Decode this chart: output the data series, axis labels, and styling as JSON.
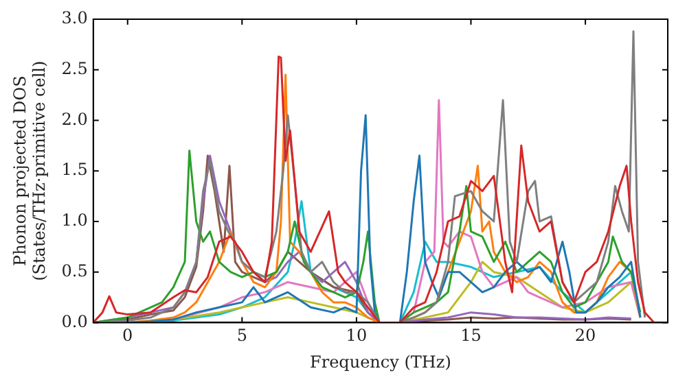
{
  "chart_data": {
    "type": "line",
    "xlabel": "Frequency (THz)",
    "ylabel": "Phonon projected DOS\n(States/THz·primitive cell)",
    "xlim": [
      -1.5,
      23.6
    ],
    "ylim": [
      0,
      3
    ],
    "xticks": [
      0,
      5,
      10,
      15,
      20
    ],
    "yticks": [
      {
        "value": 0,
        "label": "0.0"
      },
      {
        "value": 0.5,
        "label": "0.5"
      },
      {
        "value": 1,
        "label": "1.0"
      },
      {
        "value": 1.5,
        "label": "1.5"
      },
      {
        "value": 2,
        "label": "2.0"
      },
      {
        "value": 2.5,
        "label": "2.5"
      },
      {
        "value": 3,
        "label": "3.0"
      }
    ],
    "grid": false,
    "legend": false,
    "marker": "none",
    "line_style": "solid",
    "series": [
      {
        "color": "#d62728",
        "x": [
          -1.5,
          -1.1,
          -0.8,
          -0.5,
          0,
          1,
          2,
          2.5,
          3,
          3.5,
          4,
          4.5,
          5,
          5.5,
          6,
          6.3,
          6.6,
          6.7,
          6.9,
          7.1,
          7.5,
          8,
          8.5,
          8.8,
          9.2,
          9.5,
          10,
          10.5,
          11,
          11.9,
          12.5,
          13,
          13.5,
          14,
          14.5,
          15,
          15.5,
          16,
          16.5,
          16.8,
          17.2,
          17.5,
          18,
          18.5,
          19,
          19.5,
          20,
          20.5,
          21,
          21.5,
          21.8,
          22,
          22.3,
          22.6,
          23
        ],
        "values": [
          0,
          0.1,
          0.26,
          0.1,
          0.08,
          0.1,
          0.25,
          0.32,
          0.3,
          0.45,
          0.8,
          0.85,
          0.7,
          0.5,
          0.4,
          0.8,
          2.63,
          2.62,
          1.6,
          1.9,
          0.9,
          0.7,
          0.95,
          1.1,
          0.5,
          0.4,
          0.3,
          0.15,
          0,
          0,
          0.15,
          0.2,
          0.5,
          1.0,
          1.05,
          1.4,
          1.3,
          1.45,
          0.6,
          0.3,
          1.75,
          1.2,
          0.9,
          1.0,
          0.4,
          0.2,
          0.5,
          0.6,
          0.9,
          1.35,
          1.55,
          1.0,
          0.4,
          0.1,
          0
        ]
      },
      {
        "color": "#7f7f7f",
        "x": [
          -1.5,
          0,
          1,
          2,
          2.5,
          3,
          3.3,
          3.6,
          4,
          4.4,
          4.7,
          5,
          5.5,
          6,
          6.5,
          6.8,
          7,
          7.3,
          7.6,
          8,
          8.5,
          9,
          9.5,
          10,
          10.5,
          11,
          11.9,
          12.5,
          13,
          13.5,
          14,
          14.3,
          15,
          15.5,
          16,
          16.4,
          16.7,
          17,
          17.5,
          17.8,
          18,
          18.5,
          19,
          19.5,
          20,
          20.5,
          21,
          21.3,
          21.6,
          21.9,
          22.1,
          22.3,
          22.6
        ],
        "values": [
          0,
          0.02,
          0.05,
          0.15,
          0.3,
          0.6,
          1.3,
          1.6,
          1.1,
          0.9,
          0.8,
          0.6,
          0.5,
          0.45,
          0.9,
          1.5,
          2.05,
          1.4,
          0.7,
          0.5,
          0.6,
          0.4,
          0.3,
          0.3,
          0.2,
          0,
          0,
          0.05,
          0.1,
          0.2,
          0.6,
          1.25,
          1.3,
          1.1,
          1.0,
          2.2,
          0.8,
          0.6,
          1.3,
          1.4,
          1.0,
          1.05,
          0.4,
          0.2,
          0.3,
          0.4,
          0.8,
          1.35,
          1.1,
          0.9,
          2.88,
          0.6,
          0.05
        ]
      },
      {
        "color": "#1f77b4",
        "x": [
          -1.5,
          0,
          1,
          2,
          3,
          4,
          5,
          5.5,
          6,
          7,
          8,
          9,
          9.5,
          10,
          10.2,
          10.4,
          10.6,
          10.8,
          11,
          11.9,
          12.2,
          12.5,
          12.75,
          13,
          13.3,
          13.6,
          14,
          14.5,
          15,
          15.5,
          16,
          16.5,
          17,
          17.5,
          18,
          18.5,
          19,
          19.3,
          19.6,
          20,
          20.5,
          21,
          21.5,
          22,
          22.4
        ],
        "values": [
          0,
          0,
          0.01,
          0.03,
          0.1,
          0.15,
          0.2,
          0.35,
          0.2,
          0.3,
          0.15,
          0.1,
          0.15,
          0.1,
          1.5,
          2.05,
          0.6,
          0.1,
          0,
          0,
          0.5,
          1.2,
          1.65,
          0.6,
          0.4,
          0.25,
          0.5,
          0.5,
          0.4,
          0.3,
          0.35,
          0.5,
          0.6,
          0.5,
          0.55,
          0.4,
          0.8,
          0.5,
          0.1,
          0.1,
          0.2,
          0.35,
          0.45,
          0.6,
          0.05
        ]
      },
      {
        "color": "#2ca02c",
        "x": [
          -1.5,
          0,
          1,
          1.5,
          2,
          2.5,
          2.7,
          3,
          3.3,
          3.6,
          4,
          4.5,
          5,
          5.5,
          6,
          6.5,
          7,
          7.3,
          7.7,
          8,
          8.5,
          9,
          9.5,
          10,
          10.3,
          10.5,
          10.8,
          11,
          11.9,
          12.5,
          13,
          13.5,
          14,
          14.5,
          14.8,
          15,
          15.5,
          16,
          16.5,
          17,
          17.5,
          18,
          18.5,
          19,
          19.5,
          20,
          20.5,
          21,
          21.2,
          21.6,
          22,
          22.4
        ],
        "values": [
          0,
          0.05,
          0.15,
          0.2,
          0.35,
          0.6,
          1.7,
          1.0,
          0.8,
          0.9,
          0.6,
          0.5,
          0.45,
          0.5,
          0.45,
          0.5,
          0.7,
          1.0,
          0.6,
          0.5,
          0.35,
          0.3,
          0.25,
          0.3,
          0.6,
          0.9,
          0.2,
          0,
          0,
          0.1,
          0.15,
          0.2,
          0.3,
          0.9,
          1.35,
          0.9,
          0.85,
          0.6,
          0.8,
          0.5,
          0.6,
          0.7,
          0.6,
          0.3,
          0.15,
          0.2,
          0.4,
          0.6,
          0.85,
          0.6,
          0.5,
          0.1
        ]
      },
      {
        "color": "#ff7f0e",
        "x": [
          -1.5,
          0,
          1,
          2,
          2.5,
          3,
          3.5,
          4,
          4.5,
          5,
          5.5,
          6,
          6.5,
          6.7,
          6.9,
          7.1,
          7.5,
          8,
          8.5,
          9,
          9.5,
          10,
          10.5,
          11,
          11.9,
          12.5,
          13,
          13.5,
          14,
          14.5,
          15,
          15.3,
          15.5,
          15.8,
          16,
          16.5,
          17,
          17.5,
          18,
          18.5,
          19,
          19.5,
          20,
          20.5,
          21,
          21.5,
          22,
          22.4
        ],
        "values": [
          0,
          0,
          0.02,
          0.05,
          0.1,
          0.2,
          0.4,
          0.6,
          0.9,
          0.6,
          0.4,
          0.35,
          0.5,
          1.0,
          2.45,
          0.8,
          0.7,
          0.5,
          0.3,
          0.2,
          0.2,
          0.15,
          0.05,
          0,
          0,
          0.05,
          0.1,
          0.2,
          0.5,
          0.8,
          1.1,
          1.55,
          0.9,
          1.0,
          0.7,
          0.5,
          0.4,
          0.45,
          0.6,
          0.5,
          0.2,
          0.1,
          0.1,
          0.2,
          0.45,
          0.6,
          0.5,
          0.05
        ]
      },
      {
        "color": "#9467bd",
        "x": [
          -1.5,
          0,
          1,
          2,
          2.5,
          3,
          3.3,
          3.6,
          4,
          4.5,
          5,
          5.5,
          6,
          6.5,
          7,
          7.5,
          8,
          8.5,
          9,
          9.5,
          10,
          10.5,
          11,
          11.9,
          13,
          14,
          15,
          16,
          17,
          18,
          19,
          20,
          21,
          22
        ],
        "values": [
          0,
          0.05,
          0.1,
          0.15,
          0.3,
          0.6,
          1.2,
          1.65,
          1.2,
          0.9,
          0.6,
          0.5,
          0.4,
          0.45,
          0.6,
          0.7,
          0.5,
          0.4,
          0.5,
          0.6,
          0.4,
          0.1,
          0,
          0,
          0.03,
          0.05,
          0.1,
          0.08,
          0.05,
          0.05,
          0.04,
          0.03,
          0.05,
          0.04
        ]
      },
      {
        "color": "#8c564b",
        "x": [
          -1.5,
          0,
          1,
          2,
          2.5,
          3,
          3.3,
          3.5,
          3.8,
          4.2,
          4.45,
          4.7,
          5,
          5.5,
          6,
          6.5,
          7,
          7.5,
          8,
          9,
          10,
          10.5,
          11,
          11.9,
          13,
          14,
          15,
          16,
          17,
          18,
          19,
          20,
          21,
          22
        ],
        "values": [
          0,
          0.03,
          0.08,
          0.12,
          0.25,
          0.55,
          1.1,
          1.65,
          1.3,
          0.7,
          1.55,
          0.6,
          0.5,
          0.45,
          0.4,
          0.5,
          0.7,
          0.6,
          0.5,
          0.35,
          0.3,
          0.1,
          0,
          0,
          0.02,
          0.03,
          0.05,
          0.04,
          0.05,
          0.04,
          0.03,
          0.03,
          0.04,
          0.03
        ]
      },
      {
        "color": "#e377c2",
        "x": [
          -1.5,
          0,
          2,
          4,
          5,
          6,
          7,
          8,
          9,
          9.5,
          10,
          10.5,
          11,
          11.9,
          12.5,
          13,
          13.4,
          13.6,
          13.8,
          14,
          14.5,
          15,
          15.5,
          16,
          16.5,
          17,
          17.5,
          18,
          18.5,
          19,
          20,
          21,
          22,
          22.4
        ],
        "values": [
          0,
          0,
          0.03,
          0.15,
          0.25,
          0.3,
          0.4,
          0.35,
          0.3,
          0.4,
          0.5,
          0.2,
          0,
          0,
          0.1,
          0.6,
          0.7,
          2.2,
          0.8,
          0.75,
          0.9,
          0.85,
          0.5,
          0.35,
          0.4,
          0.45,
          0.3,
          0.25,
          0.2,
          0.15,
          0.2,
          0.35,
          0.4,
          0.05
        ]
      },
      {
        "color": "#bcbd22",
        "x": [
          -1.5,
          0,
          2,
          4,
          5,
          6,
          7,
          8,
          9,
          10,
          10.5,
          11,
          11.9,
          13,
          14,
          15,
          15.5,
          16,
          17,
          18,
          19,
          20,
          21,
          22,
          22.4
        ],
        "values": [
          0,
          0,
          0.03,
          0.1,
          0.15,
          0.2,
          0.25,
          0.2,
          0.15,
          0.1,
          0.05,
          0,
          0,
          0.05,
          0.1,
          0.4,
          0.6,
          0.5,
          0.45,
          0.3,
          0.15,
          0.1,
          0.2,
          0.4,
          0.05
        ]
      },
      {
        "color": "#17becf",
        "x": [
          -1.5,
          0,
          2,
          4,
          5,
          6,
          7,
          7.3,
          7.6,
          8,
          9,
          10,
          10.5,
          11,
          11.9,
          12.5,
          13,
          13.5,
          14,
          15,
          16,
          17,
          18,
          19,
          20,
          21,
          22,
          22.4
        ],
        "values": [
          0,
          0,
          0.02,
          0.08,
          0.15,
          0.25,
          0.5,
          0.8,
          1.2,
          0.5,
          0.35,
          0.25,
          0.1,
          0,
          0,
          0.3,
          0.8,
          0.6,
          0.6,
          0.55,
          0.45,
          0.5,
          0.55,
          0.3,
          0.1,
          0.3,
          0.5,
          0.05
        ]
      }
    ]
  }
}
